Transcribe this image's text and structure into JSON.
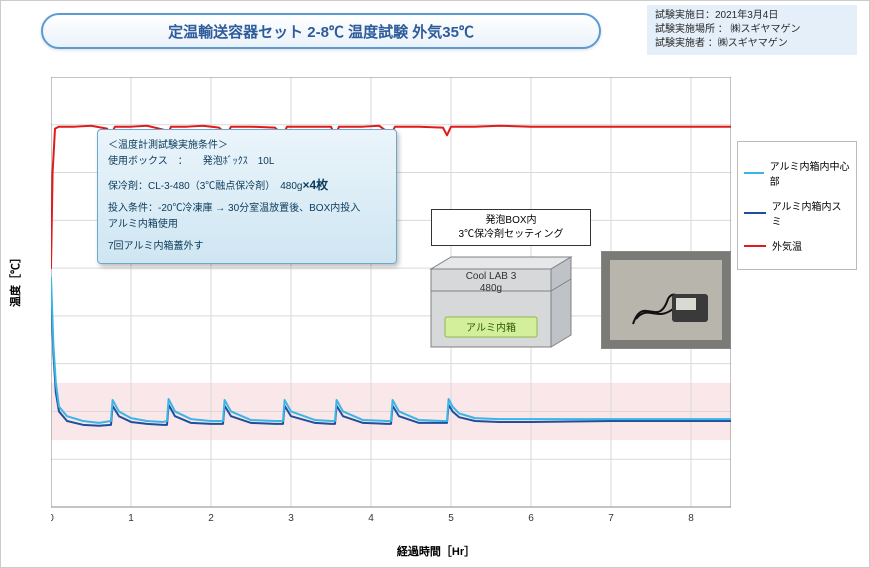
{
  "title": "定温輸送容器セット  2-8℃ 温度試験 外気35℃",
  "meta": {
    "line1": "試験実施日：2021年3月4日",
    "line2": "試験実施場所 ：  ㈱スギヤマゲン",
    "line3": "試験実施者 ：㈱スギヤマゲン"
  },
  "axes": {
    "ylabel": "温度［℃］",
    "xlabel": "経過時間［Hr］",
    "ylim": [
      -5,
      40
    ],
    "xlim": [
      0,
      8.5
    ],
    "yticks": [
      -5,
      0,
      5,
      10,
      15,
      20,
      25,
      30,
      35,
      40
    ],
    "xticks": [
      0,
      1,
      2,
      3,
      4,
      5,
      6,
      7,
      8
    ],
    "grid_color": "#d9d9d9",
    "axis_color": "#888888",
    "band_y": [
      2,
      8
    ],
    "band_color": "#f6d7db",
    "band_opacity": 0.6
  },
  "legend": {
    "items": [
      {
        "label": "アルミ内箱内中心部",
        "color": "#3bb4e6",
        "width": 2
      },
      {
        "label": "アルミ内箱内スミ",
        "color": "#1f4e9c",
        "width": 2
      },
      {
        "label": "外気温",
        "color": "#e11b1b",
        "width": 2
      }
    ]
  },
  "conditions": {
    "title": "＜温度計測試験実施条件＞",
    "box_line": "使用ボックス　：　　発泡ﾎﾞｯｸｽ　10L",
    "coolant_prefix": "保冷剤：CL-3-480（3℃融点保冷剤）　480g",
    "coolant_bold": "×4枚",
    "inject": "投入条件：-20℃冷凍庫 → 30分室温放置後、BOX内投入\nアルミ内箱使用",
    "lid": "7回アルミ内箱蓋外す"
  },
  "photo_label": {
    "l1": "発泡BOX内",
    "l2": "3℃保冷剤セッティング"
  },
  "diagram": {
    "top_label_l1": "Cool LAB 3",
    "top_label_l2": "480g",
    "inner_label": "アルミ内箱",
    "body_fill": "#d6d8da",
    "body_stroke": "#7d8084",
    "inner_fill": "#d4ef9b",
    "inner_stroke": "#8fb84d"
  },
  "series": {
    "ambient": {
      "color": "#e11b1b",
      "width": 2,
      "points": [
        [
          0,
          20
        ],
        [
          0.02,
          30
        ],
        [
          0.05,
          34.6
        ],
        [
          0.1,
          34.8
        ],
        [
          0.3,
          34.8
        ],
        [
          0.5,
          34.9
        ],
        [
          0.7,
          34.6
        ],
        [
          0.75,
          34.0
        ],
        [
          0.8,
          34.8
        ],
        [
          1.0,
          34.8
        ],
        [
          1.2,
          34.9
        ],
        [
          1.4,
          34.5
        ],
        [
          1.45,
          33.8
        ],
        [
          1.5,
          34.8
        ],
        [
          1.7,
          34.8
        ],
        [
          1.9,
          34.9
        ],
        [
          2.1,
          34.7
        ],
        [
          2.2,
          34.0
        ],
        [
          2.25,
          34.8
        ],
        [
          2.5,
          34.8
        ],
        [
          2.8,
          34.7
        ],
        [
          2.9,
          33.9
        ],
        [
          2.95,
          34.8
        ],
        [
          3.2,
          34.8
        ],
        [
          3.5,
          34.8
        ],
        [
          3.55,
          33.8
        ],
        [
          3.6,
          34.8
        ],
        [
          3.9,
          34.8
        ],
        [
          4.1,
          34.9
        ],
        [
          4.25,
          34.0
        ],
        [
          4.3,
          34.8
        ],
        [
          4.6,
          34.8
        ],
        [
          4.9,
          34.7
        ],
        [
          4.95,
          33.9
        ],
        [
          5.0,
          34.8
        ],
        [
          5.3,
          34.8
        ],
        [
          5.6,
          34.9
        ],
        [
          6.0,
          34.8
        ],
        [
          6.5,
          34.8
        ],
        [
          7.0,
          34.8
        ],
        [
          7.5,
          34.8
        ],
        [
          8.0,
          34.8
        ],
        [
          8.5,
          34.8
        ]
      ]
    },
    "center": {
      "color": "#3bb4e6",
      "width": 2,
      "points": [
        [
          0,
          19
        ],
        [
          0.03,
          12
        ],
        [
          0.06,
          8
        ],
        [
          0.1,
          5.5
        ],
        [
          0.2,
          4.5
        ],
        [
          0.4,
          4.0
        ],
        [
          0.6,
          3.8
        ],
        [
          0.75,
          4.0
        ],
        [
          0.77,
          6.2
        ],
        [
          0.85,
          5.0
        ],
        [
          1.0,
          4.3
        ],
        [
          1.2,
          4.0
        ],
        [
          1.4,
          3.9
        ],
        [
          1.45,
          4.0
        ],
        [
          1.47,
          6.3
        ],
        [
          1.55,
          5.0
        ],
        [
          1.75,
          4.2
        ],
        [
          2.0,
          4.0
        ],
        [
          2.15,
          4.0
        ],
        [
          2.17,
          6.2
        ],
        [
          2.25,
          5.0
        ],
        [
          2.5,
          4.1
        ],
        [
          2.8,
          4.0
        ],
        [
          2.9,
          4.0
        ],
        [
          2.92,
          6.2
        ],
        [
          3.0,
          5.0
        ],
        [
          3.3,
          4.1
        ],
        [
          3.5,
          4.0
        ],
        [
          3.55,
          4.0
        ],
        [
          3.57,
          6.2
        ],
        [
          3.65,
          5.0
        ],
        [
          3.9,
          4.1
        ],
        [
          4.2,
          4.0
        ],
        [
          4.25,
          4.0
        ],
        [
          4.27,
          6.2
        ],
        [
          4.35,
          5.0
        ],
        [
          4.6,
          4.1
        ],
        [
          4.9,
          4.0
        ],
        [
          4.95,
          4.0
        ],
        [
          4.97,
          6.3
        ],
        [
          5.02,
          5.5
        ],
        [
          5.1,
          4.8
        ],
        [
          5.3,
          4.3
        ],
        [
          5.6,
          4.2
        ],
        [
          6.0,
          4.2
        ],
        [
          6.5,
          4.2
        ],
        [
          7.0,
          4.2
        ],
        [
          7.5,
          4.2
        ],
        [
          8.0,
          4.2
        ],
        [
          8.5,
          4.2
        ]
      ]
    },
    "corner": {
      "color": "#1f4e9c",
      "width": 2,
      "points": [
        [
          0,
          18
        ],
        [
          0.03,
          11
        ],
        [
          0.06,
          7
        ],
        [
          0.1,
          5.0
        ],
        [
          0.2,
          4.0
        ],
        [
          0.4,
          3.6
        ],
        [
          0.6,
          3.5
        ],
        [
          0.75,
          3.6
        ],
        [
          0.77,
          5.6
        ],
        [
          0.85,
          4.5
        ],
        [
          1.0,
          3.9
        ],
        [
          1.2,
          3.7
        ],
        [
          1.4,
          3.6
        ],
        [
          1.45,
          3.6
        ],
        [
          1.47,
          5.7
        ],
        [
          1.55,
          4.5
        ],
        [
          1.75,
          3.8
        ],
        [
          2.0,
          3.7
        ],
        [
          2.15,
          3.7
        ],
        [
          2.17,
          5.6
        ],
        [
          2.25,
          4.5
        ],
        [
          2.5,
          3.8
        ],
        [
          2.8,
          3.7
        ],
        [
          2.9,
          3.7
        ],
        [
          2.92,
          5.6
        ],
        [
          3.0,
          4.5
        ],
        [
          3.3,
          3.8
        ],
        [
          3.5,
          3.7
        ],
        [
          3.55,
          3.7
        ],
        [
          3.57,
          5.6
        ],
        [
          3.65,
          4.5
        ],
        [
          3.9,
          3.8
        ],
        [
          4.2,
          3.7
        ],
        [
          4.25,
          3.7
        ],
        [
          4.27,
          5.6
        ],
        [
          4.35,
          4.5
        ],
        [
          4.6,
          3.8
        ],
        [
          4.9,
          3.8
        ],
        [
          4.95,
          3.8
        ],
        [
          4.97,
          5.7
        ],
        [
          5.02,
          5.0
        ],
        [
          5.1,
          4.4
        ],
        [
          5.3,
          4.0
        ],
        [
          5.6,
          3.9
        ],
        [
          6.0,
          3.9
        ],
        [
          6.5,
          3.95
        ],
        [
          7.0,
          4.0
        ],
        [
          7.5,
          4.0
        ],
        [
          8.0,
          4.0
        ],
        [
          8.5,
          4.0
        ]
      ]
    }
  }
}
